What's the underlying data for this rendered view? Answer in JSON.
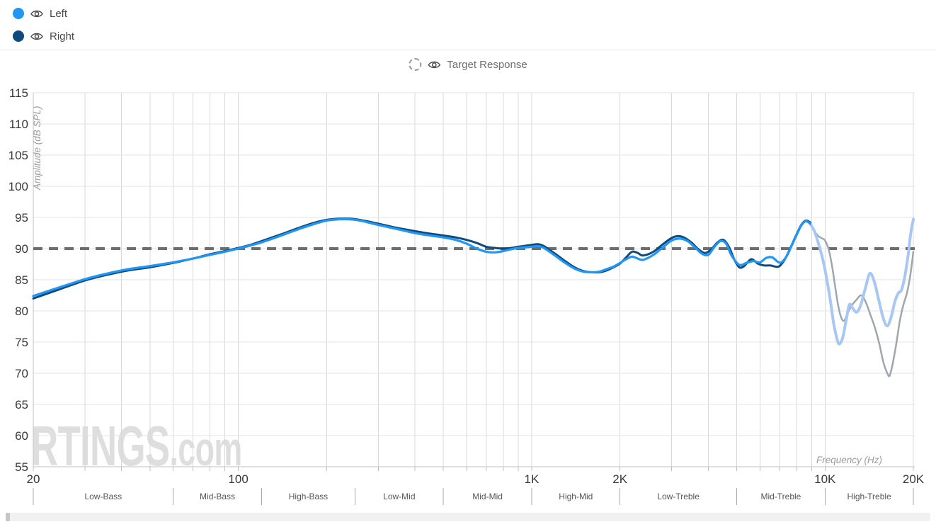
{
  "legend": {
    "left": {
      "label": "Left",
      "color": "#2196f3"
    },
    "right": {
      "label": "Right",
      "color": "#0e4a7b"
    },
    "target": {
      "label": "Target Response"
    }
  },
  "colors": {
    "grid_vertical": "#d8d8d8",
    "grid_horizontal": "#e3e3e3",
    "axis": "#c0c0c0",
    "band_separator": "#a8a8a8",
    "tick_label": "#383838",
    "band_label": "#555555",
    "axis_title": "#9b9b9b",
    "target_line": "#6d6d6d",
    "watermark": "#dedede"
  },
  "chart_data": {
    "type": "line",
    "xlabel": "Frequency (Hz)",
    "ylabel": "Amplitude (dB SPL)",
    "x_scale": "log",
    "xlim": [
      20,
      20000
    ],
    "ylim": [
      55,
      115
    ],
    "grid": true,
    "y_ticks": [
      115,
      110,
      105,
      100,
      95,
      90,
      85,
      80,
      75,
      70,
      65,
      60,
      55
    ],
    "x_ticks": [
      {
        "f": 20,
        "label": "20"
      },
      {
        "f": 100,
        "label": "100"
      },
      {
        "f": 1000,
        "label": "1K"
      },
      {
        "f": 2000,
        "label": "2K"
      },
      {
        "f": 10000,
        "label": "10K"
      },
      {
        "f": 20000,
        "label": "20K"
      }
    ],
    "grid_freqs": [
      20,
      30,
      40,
      50,
      60,
      70,
      80,
      90,
      100,
      200,
      300,
      400,
      500,
      600,
      700,
      800,
      900,
      1000,
      2000,
      3000,
      4000,
      5000,
      6000,
      7000,
      8000,
      9000,
      10000,
      20000
    ],
    "target_level": 90,
    "bands": {
      "edges": [
        20,
        60,
        120,
        250,
        500,
        1000,
        2000,
        5000,
        10000,
        20000
      ],
      "labels": [
        "Low-Bass",
        "Mid-Bass",
        "High-Bass",
        "Low-Mid",
        "Mid-Mid",
        "High-Mid",
        "Low-Treble",
        "Mid-Treble",
        "High-Treble"
      ]
    },
    "watermark": {
      "main": "RTINGS",
      "suffix": ".com"
    },
    "series": [
      {
        "id": "right-fade",
        "name": "Right (above 9 kHz, faded)",
        "color": "#9ea7b0",
        "width": 2.5,
        "points": [
          [
            8900,
            94.2
          ],
          [
            9200,
            92.8
          ],
          [
            9500,
            92.0
          ],
          [
            9800,
            91.6
          ],
          [
            10000,
            91.3
          ],
          [
            10300,
            89.8
          ],
          [
            10600,
            86.8
          ],
          [
            11000,
            81.8
          ],
          [
            11300,
            79.2
          ],
          [
            11600,
            78.4
          ],
          [
            11900,
            79.5
          ],
          [
            12300,
            80.8
          ],
          [
            12800,
            81.8
          ],
          [
            13300,
            82.5
          ],
          [
            13800,
            81.3
          ],
          [
            14300,
            79.3
          ],
          [
            14800,
            77.3
          ],
          [
            15300,
            74.8
          ],
          [
            15800,
            71.8
          ],
          [
            16300,
            70.0
          ],
          [
            16600,
            69.6
          ],
          [
            17000,
            71.5
          ],
          [
            17500,
            74.8
          ],
          [
            18000,
            78.5
          ],
          [
            18500,
            81.0
          ],
          [
            19000,
            82.8
          ],
          [
            19500,
            85.5
          ],
          [
            20000,
            89.5
          ]
        ]
      },
      {
        "id": "left-fade",
        "name": "Left (above 9 kHz, faded)",
        "color": "#a8c7f3",
        "width": 4,
        "points": [
          [
            8900,
            94.0
          ],
          [
            9200,
            92.8
          ],
          [
            9500,
            90.8
          ],
          [
            9800,
            88.5
          ],
          [
            10100,
            85.5
          ],
          [
            10400,
            82.0
          ],
          [
            10700,
            78.0
          ],
          [
            11000,
            75.4
          ],
          [
            11200,
            74.7
          ],
          [
            11500,
            75.8
          ],
          [
            11800,
            78.5
          ],
          [
            12100,
            81.0
          ],
          [
            12400,
            80.5
          ],
          [
            12800,
            79.8
          ],
          [
            13200,
            80.8
          ],
          [
            13700,
            83.5
          ],
          [
            14200,
            86.0
          ],
          [
            14700,
            84.8
          ],
          [
            15200,
            82.0
          ],
          [
            15800,
            78.8
          ],
          [
            16300,
            77.6
          ],
          [
            16800,
            79.0
          ],
          [
            17300,
            81.5
          ],
          [
            17800,
            82.9
          ],
          [
            18200,
            83.3
          ],
          [
            18700,
            85.5
          ],
          [
            19200,
            89.0
          ],
          [
            19600,
            92.5
          ],
          [
            20000,
            94.7
          ]
        ]
      },
      {
        "id": "right",
        "name": "Right",
        "color": "#0e4a7b",
        "width": 3,
        "points": [
          [
            20,
            82.0
          ],
          [
            25,
            83.6
          ],
          [
            30,
            84.9
          ],
          [
            35,
            85.7
          ],
          [
            40,
            86.3
          ],
          [
            45,
            86.7
          ],
          [
            50,
            87.0
          ],
          [
            60,
            87.7
          ],
          [
            70,
            88.4
          ],
          [
            80,
            89.1
          ],
          [
            90,
            89.6
          ],
          [
            100,
            90.1
          ],
          [
            110,
            90.6
          ],
          [
            120,
            91.2
          ],
          [
            140,
            92.3
          ],
          [
            160,
            93.3
          ],
          [
            180,
            94.1
          ],
          [
            200,
            94.6
          ],
          [
            220,
            94.8
          ],
          [
            240,
            94.8
          ],
          [
            260,
            94.6
          ],
          [
            300,
            94.0
          ],
          [
            350,
            93.3
          ],
          [
            400,
            92.8
          ],
          [
            450,
            92.4
          ],
          [
            500,
            92.1
          ],
          [
            550,
            91.8
          ],
          [
            600,
            91.4
          ],
          [
            650,
            90.9
          ],
          [
            700,
            90.3
          ],
          [
            750,
            90.1
          ],
          [
            800,
            90.0
          ],
          [
            850,
            90.1
          ],
          [
            900,
            90.3
          ],
          [
            1000,
            90.6
          ],
          [
            1050,
            90.7
          ],
          [
            1100,
            90.4
          ],
          [
            1200,
            89.2
          ],
          [
            1300,
            88.0
          ],
          [
            1400,
            87.0
          ],
          [
            1500,
            86.4
          ],
          [
            1600,
            86.2
          ],
          [
            1700,
            86.2
          ],
          [
            1800,
            86.5
          ],
          [
            1900,
            87.0
          ],
          [
            2000,
            87.6
          ],
          [
            2100,
            88.6
          ],
          [
            2200,
            89.5
          ],
          [
            2300,
            89.3
          ],
          [
            2400,
            88.9
          ],
          [
            2600,
            89.5
          ],
          [
            2800,
            90.7
          ],
          [
            3000,
            91.7
          ],
          [
            3150,
            92.0
          ],
          [
            3300,
            91.8
          ],
          [
            3500,
            91.0
          ],
          [
            3700,
            89.9
          ],
          [
            3900,
            89.3
          ],
          [
            4100,
            89.9
          ],
          [
            4300,
            91.0
          ],
          [
            4500,
            91.4
          ],
          [
            4700,
            90.3
          ],
          [
            4900,
            88.3
          ],
          [
            5100,
            87.0
          ],
          [
            5300,
            87.2
          ],
          [
            5600,
            88.3
          ],
          [
            5900,
            87.6
          ],
          [
            6200,
            87.3
          ],
          [
            6500,
            87.3
          ],
          [
            6800,
            87.1
          ],
          [
            7000,
            87.2
          ],
          [
            7300,
            88.3
          ],
          [
            7600,
            90.0
          ],
          [
            8000,
            92.3
          ],
          [
            8300,
            93.8
          ],
          [
            8600,
            94.5
          ],
          [
            8900,
            94.2
          ]
        ]
      },
      {
        "id": "left",
        "name": "Left",
        "color": "#2196f3",
        "width": 3.2,
        "points": [
          [
            20,
            82.4
          ],
          [
            25,
            83.9
          ],
          [
            30,
            85.1
          ],
          [
            35,
            85.9
          ],
          [
            40,
            86.5
          ],
          [
            45,
            86.9
          ],
          [
            50,
            87.2
          ],
          [
            60,
            87.8
          ],
          [
            70,
            88.4
          ],
          [
            80,
            89.0
          ],
          [
            90,
            89.5
          ],
          [
            100,
            90.0
          ],
          [
            110,
            90.5
          ],
          [
            120,
            91.0
          ],
          [
            140,
            92.1
          ],
          [
            160,
            93.1
          ],
          [
            180,
            93.9
          ],
          [
            200,
            94.5
          ],
          [
            220,
            94.7
          ],
          [
            240,
            94.7
          ],
          [
            260,
            94.5
          ],
          [
            300,
            93.8
          ],
          [
            350,
            93.1
          ],
          [
            400,
            92.5
          ],
          [
            450,
            92.1
          ],
          [
            500,
            91.8
          ],
          [
            550,
            91.4
          ],
          [
            600,
            90.8
          ],
          [
            650,
            90.0
          ],
          [
            700,
            89.5
          ],
          [
            750,
            89.4
          ],
          [
            800,
            89.6
          ],
          [
            850,
            89.9
          ],
          [
            900,
            90.1
          ],
          [
            1000,
            90.3
          ],
          [
            1050,
            90.4
          ],
          [
            1100,
            90.1
          ],
          [
            1200,
            88.9
          ],
          [
            1300,
            87.7
          ],
          [
            1400,
            86.8
          ],
          [
            1500,
            86.3
          ],
          [
            1600,
            86.2
          ],
          [
            1700,
            86.3
          ],
          [
            1800,
            86.7
          ],
          [
            1900,
            87.1
          ],
          [
            2000,
            87.7
          ],
          [
            2100,
            88.3
          ],
          [
            2200,
            88.7
          ],
          [
            2300,
            88.4
          ],
          [
            2400,
            88.2
          ],
          [
            2600,
            89.0
          ],
          [
            2800,
            90.2
          ],
          [
            3000,
            91.3
          ],
          [
            3200,
            91.6
          ],
          [
            3400,
            91.2
          ],
          [
            3600,
            90.2
          ],
          [
            3800,
            89.2
          ],
          [
            4000,
            89.0
          ],
          [
            4200,
            90.3
          ],
          [
            4400,
            91.2
          ],
          [
            4600,
            90.8
          ],
          [
            4800,
            88.9
          ],
          [
            5100,
            87.4
          ],
          [
            5400,
            87.7
          ],
          [
            5700,
            88.0
          ],
          [
            6000,
            87.8
          ],
          [
            6300,
            88.5
          ],
          [
            6600,
            88.6
          ],
          [
            6900,
            87.9
          ],
          [
            7100,
            87.8
          ],
          [
            7400,
            88.8
          ],
          [
            7700,
            90.5
          ],
          [
            8000,
            92.2
          ],
          [
            8300,
            93.7
          ],
          [
            8600,
            94.4
          ],
          [
            8900,
            94.0
          ]
        ]
      }
    ]
  }
}
